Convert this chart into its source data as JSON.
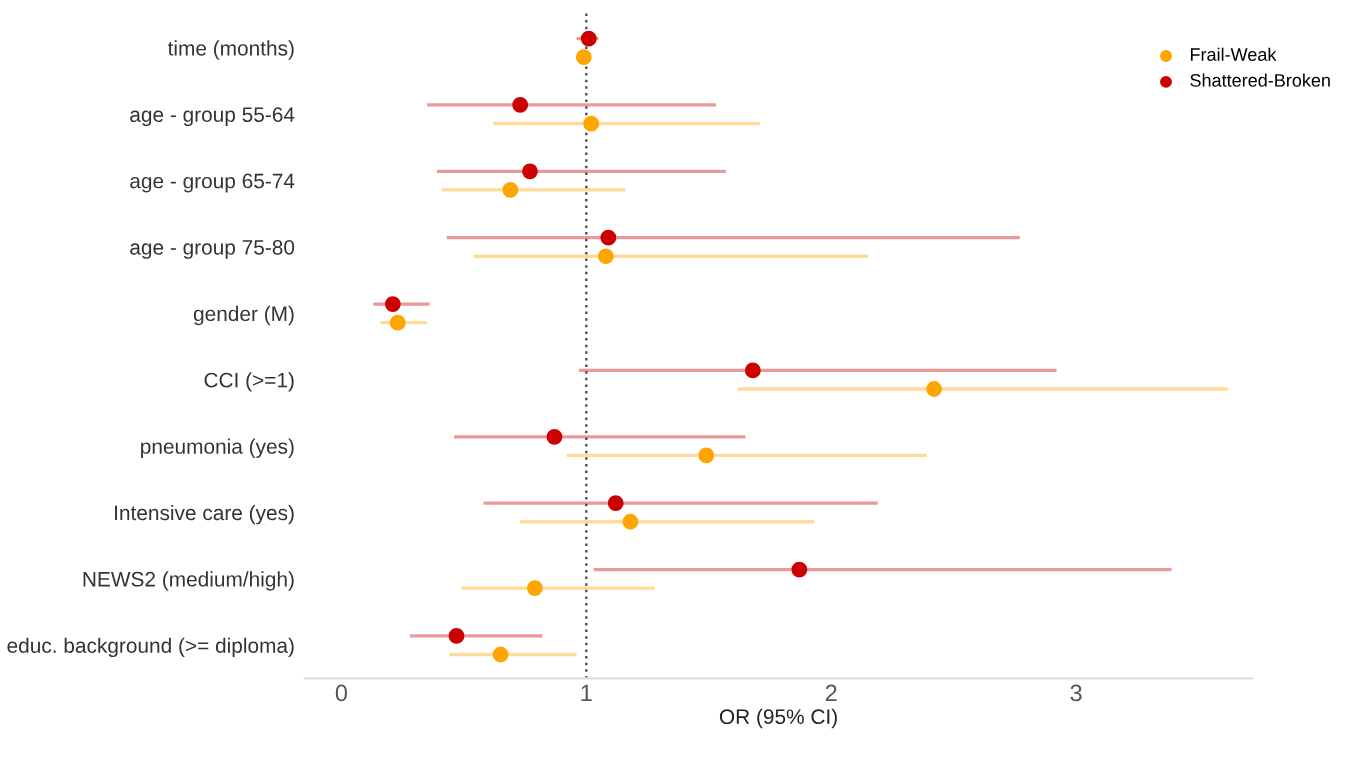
{
  "chart_data": {
    "type": "scatter",
    "orientation": "horizontal",
    "xlabel": "OR (95% CI)",
    "categories": [
      "time (months)",
      "age - group 55-64",
      "age - group 65-74",
      "age - group 75-80",
      "gender (M)",
      "CCI (>=1)",
      "pneumonia (yes)",
      "Intensive care (yes)",
      "NEWS2 (medium/high)",
      "educ. background (>= diploma)"
    ],
    "series": [
      {
        "name": "Frail-Weak",
        "color": "#ffa500",
        "values": [
          0.99,
          1.02,
          0.69,
          1.08,
          0.23,
          2.42,
          1.49,
          1.18,
          0.79,
          0.65
        ],
        "errors": [
          [
            0.97,
            1.01
          ],
          [
            0.62,
            1.71
          ],
          [
            0.41,
            1.16
          ],
          [
            0.54,
            2.15
          ],
          [
            0.16,
            0.35
          ],
          [
            1.62,
            3.62
          ],
          [
            0.92,
            2.39
          ],
          [
            0.73,
            1.93
          ],
          [
            0.49,
            1.28
          ],
          [
            0.44,
            0.96
          ]
        ]
      },
      {
        "name": "Shattered-Broken",
        "color": "#cc0000",
        "values": [
          1.01,
          0.73,
          0.77,
          1.09,
          0.21,
          1.68,
          0.87,
          1.12,
          1.87,
          0.47
        ],
        "errors": [
          [
            0.96,
            1.05
          ],
          [
            0.35,
            1.53
          ],
          [
            0.39,
            1.57
          ],
          [
            0.43,
            2.77
          ],
          [
            0.13,
            0.36
          ],
          [
            0.97,
            2.92
          ],
          [
            0.46,
            1.65
          ],
          [
            0.58,
            2.19
          ],
          [
            1.03,
            3.39
          ],
          [
            0.28,
            0.82
          ]
        ]
      }
    ],
    "xlim": [
      -0.15,
      3.72
    ],
    "xticks": [
      0,
      1,
      2,
      3
    ],
    "ref_lines": [
      {
        "axis": "x",
        "value": 1,
        "color": "#555555",
        "line_style": "dotted"
      }
    ],
    "grid": false,
    "legend": "top right",
    "marker": "circle"
  }
}
